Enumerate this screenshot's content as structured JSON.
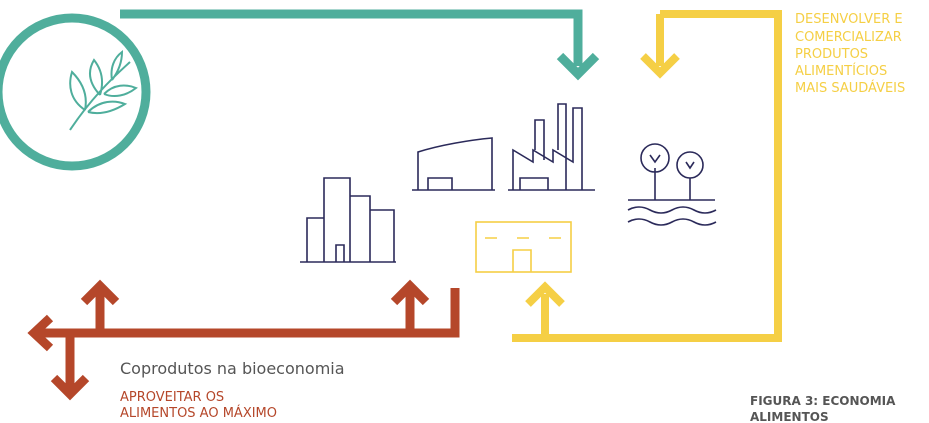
{
  "healthy_label": {
    "lines": [
      "DESENVOLVER E",
      "COMERCIALIZAR",
      "PRODUTOS",
      "ALIMENTÍCIOS",
      "MAIS SAUDÁVEIS"
    ]
  },
  "coproducts": {
    "title": "Coprodutos na bioeconomia",
    "lines": [
      "APROVEITAR OS",
      "ALIMENTOS AO MÁXIMO"
    ]
  },
  "caption": {
    "lines": [
      "FIGURA 3: ECONOMIA",
      "ALIMENTOS"
    ]
  }
}
